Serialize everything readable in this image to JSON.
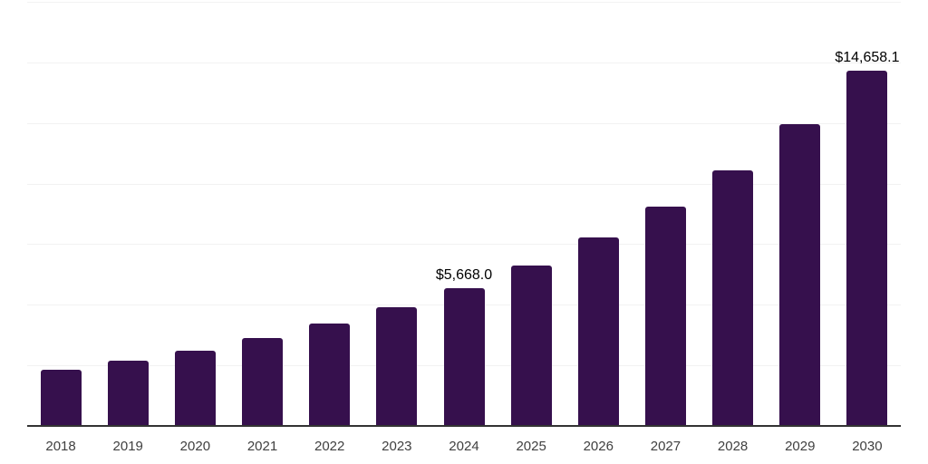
{
  "chart": {
    "background_color": "#ffffff",
    "bar_color": "#36104D",
    "grid_color": "#f2f2f2",
    "axis_line_color": "#333333",
    "tick_label_color": "#404040",
    "data_label_color": "#000000"
  },
  "chart_data": {
    "type": "bar",
    "title": "",
    "xlabel": "",
    "ylabel": "",
    "categories": [
      "2018",
      "2019",
      "2020",
      "2021",
      "2022",
      "2023",
      "2024",
      "2025",
      "2026",
      "2027",
      "2028",
      "2029",
      "2030"
    ],
    "values": [
      2330,
      2690,
      3090,
      3610,
      4240,
      4900,
      5668.0,
      6610,
      7760,
      9040,
      10560,
      12450,
      14658.1
    ],
    "labeled_points": [
      {
        "category": "2024",
        "label": "$5,668.0"
      },
      {
        "category": "2030",
        "label": "$14,658.1"
      }
    ],
    "ylim": [
      0,
      17500
    ],
    "grid_step": 2500,
    "grid": true,
    "legend": false
  }
}
